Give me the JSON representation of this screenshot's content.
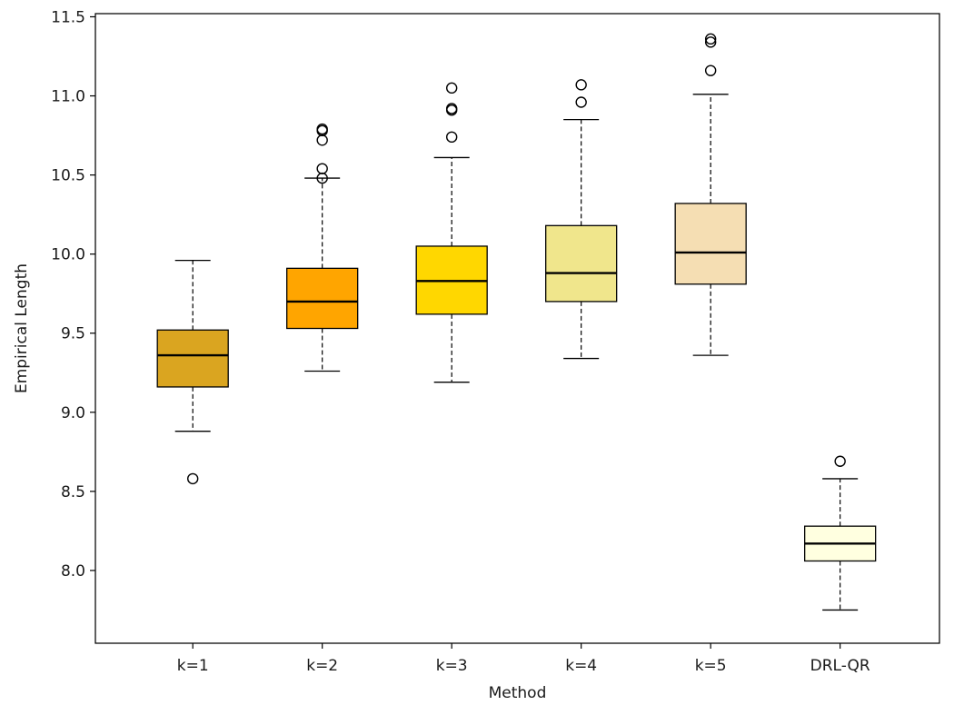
{
  "chart_data": {
    "type": "boxplot",
    "title": "",
    "xlabel": "Method",
    "ylabel": "Empirical Length",
    "ylim": [
      7.54,
      11.52
    ],
    "yticks": [
      "8.0",
      "8.5",
      "9.0",
      "9.5",
      "10.0",
      "10.5",
      "11.0",
      "11.5"
    ],
    "grid": false,
    "categories": [
      "k=1",
      "k=2",
      "k=3",
      "k=4",
      "k=5",
      "DRL-QR"
    ],
    "boxes": [
      {
        "label": "k=1",
        "color": "#DAA520",
        "whisker_low": 8.88,
        "q1": 9.16,
        "median": 9.36,
        "q3": 9.52,
        "whisker_high": 9.96,
        "outliers": [
          8.58
        ]
      },
      {
        "label": "k=2",
        "color": "#FFA500",
        "whisker_low": 9.26,
        "q1": 9.53,
        "median": 9.7,
        "q3": 9.91,
        "whisker_high": 10.48,
        "outliers": [
          10.48,
          10.54,
          10.72,
          10.78,
          10.79
        ]
      },
      {
        "label": "k=3",
        "color": "#FFD700",
        "whisker_low": 9.19,
        "q1": 9.62,
        "median": 9.83,
        "q3": 10.05,
        "whisker_high": 10.61,
        "outliers": [
          10.74,
          10.91,
          10.92,
          11.05
        ]
      },
      {
        "label": "k=4",
        "color": "#F0E68C",
        "whisker_low": 9.34,
        "q1": 9.7,
        "median": 9.88,
        "q3": 10.18,
        "whisker_high": 10.85,
        "outliers": [
          10.96,
          11.07
        ]
      },
      {
        "label": "k=5",
        "color": "#F5DEB3",
        "whisker_low": 9.36,
        "q1": 9.81,
        "median": 10.01,
        "q3": 10.32,
        "whisker_high": 11.01,
        "outliers": [
          11.16,
          11.34,
          11.36
        ]
      },
      {
        "label": "DRL-QR",
        "color": "#FFFFE0",
        "whisker_low": 7.75,
        "q1": 8.06,
        "median": 8.17,
        "q3": 8.28,
        "whisker_high": 8.58,
        "outliers": [
          8.69
        ]
      }
    ]
  }
}
